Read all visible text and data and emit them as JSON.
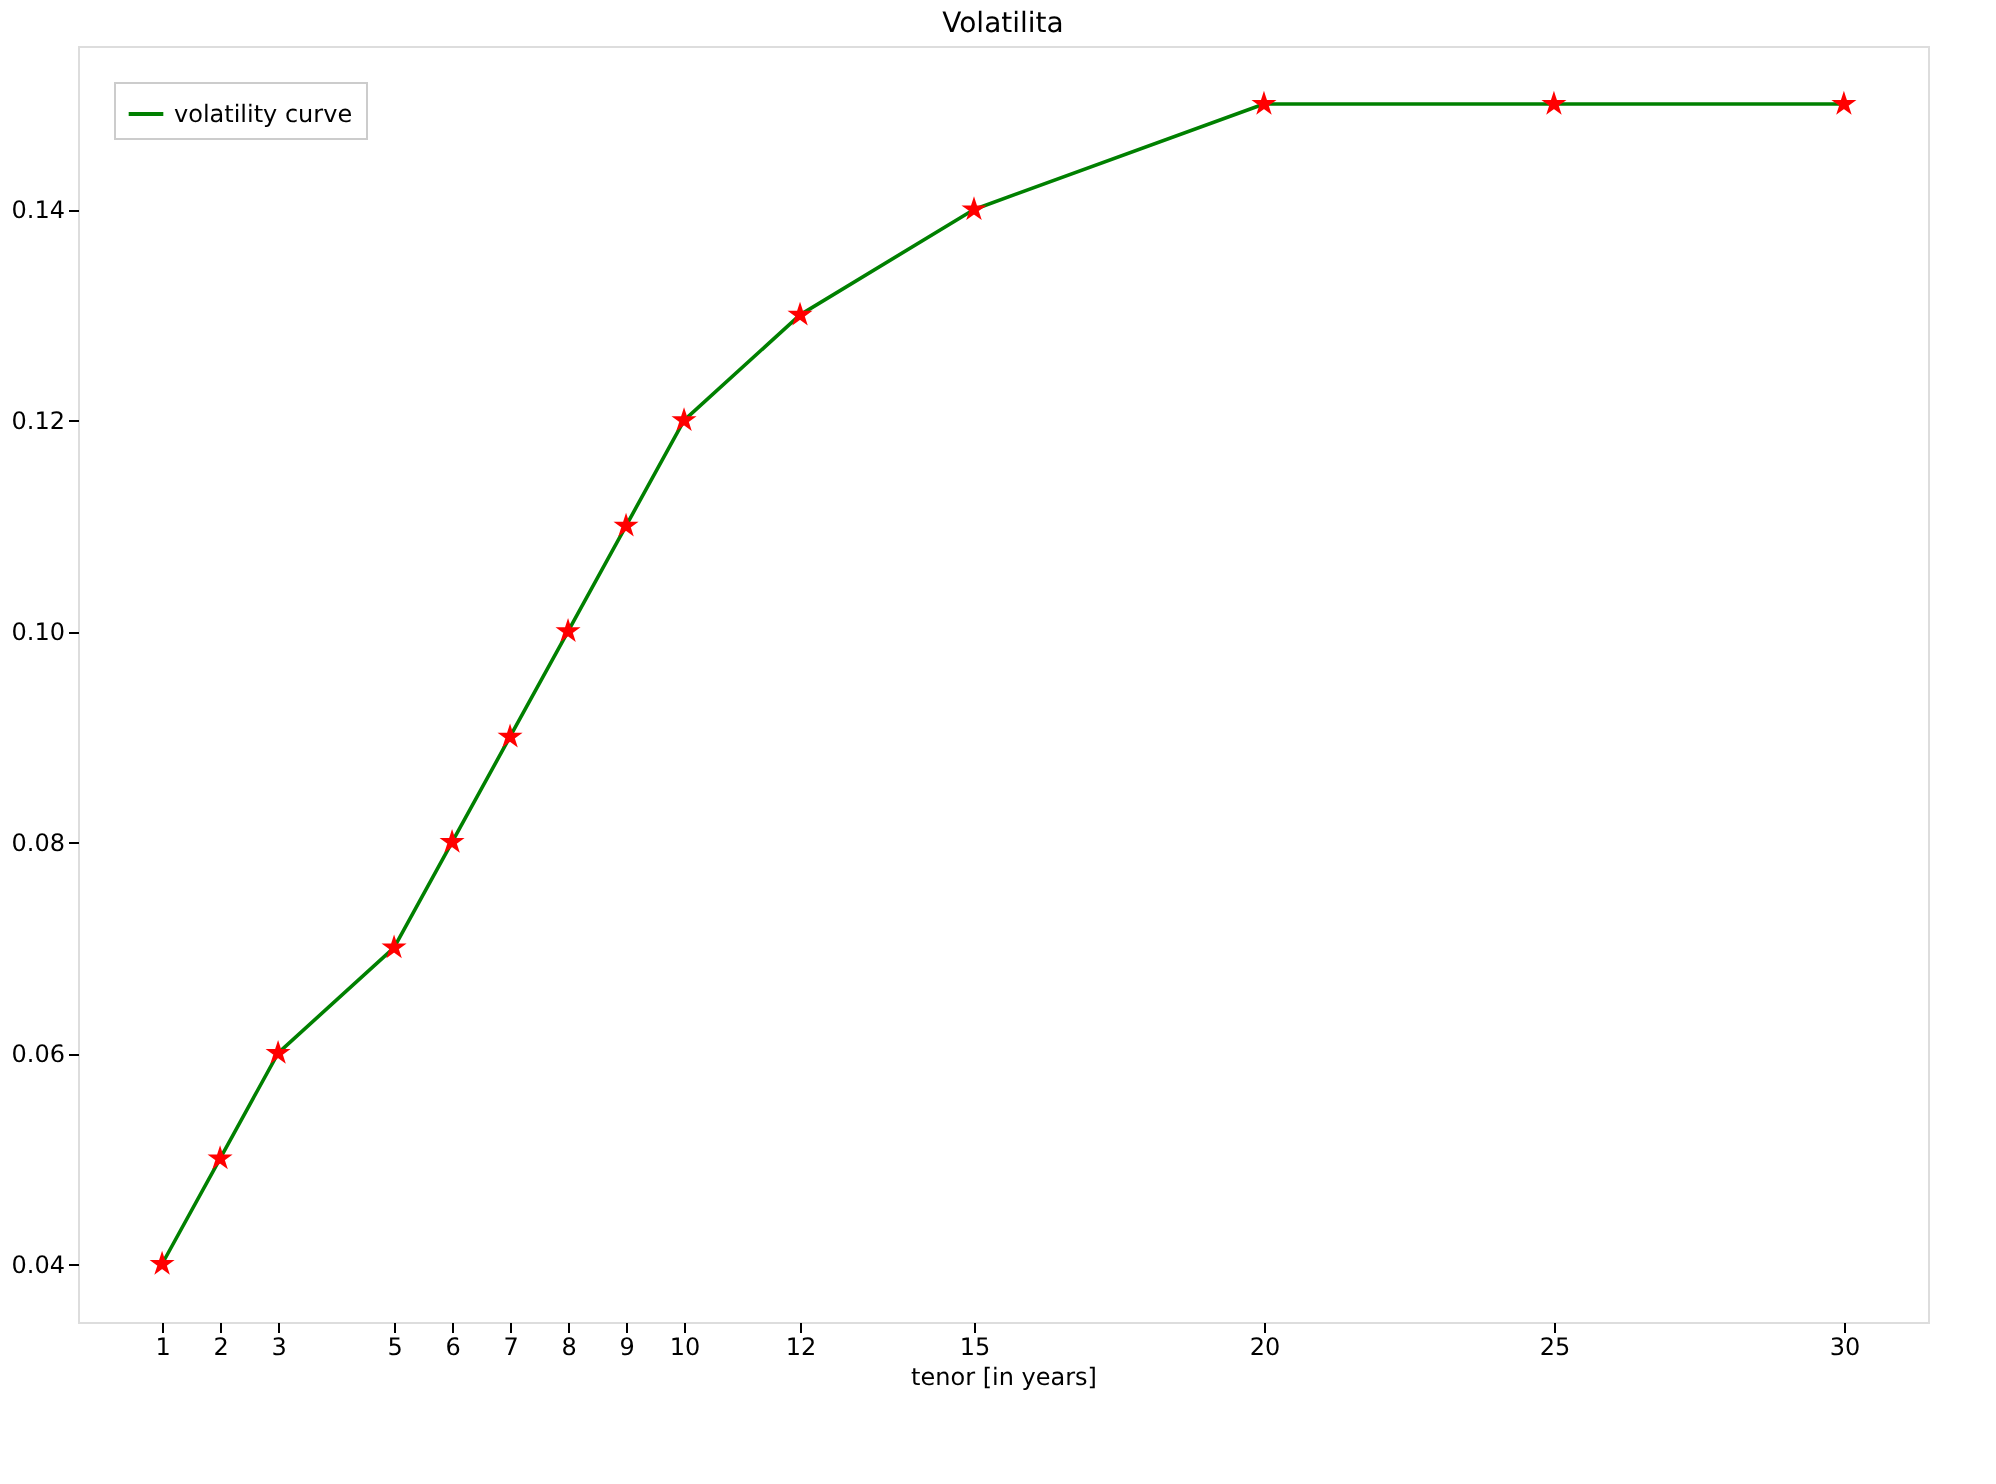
{
  "chart_data": {
    "type": "line",
    "title": "Volatilita",
    "xlabel": "tenor [in years]",
    "x": [
      1,
      2,
      3,
      5,
      6,
      7,
      8,
      9,
      10,
      12,
      15,
      20,
      25,
      30
    ],
    "series": [
      {
        "name": "volatility curve",
        "color": "#008000",
        "colors": [
          "#ff0000",
          "#ff0000",
          "#ff0000",
          "#ff0000",
          "#ff0000",
          "#ff0000",
          "#ff0000",
          "#ff0000",
          "#ff0000",
          "#ff0000",
          "#ff0000",
          "#ff0000",
          "#ff0000",
          "#ff0000"
        ],
        "values": [
          0.04,
          0.05,
          0.06,
          0.07,
          0.08,
          0.09,
          0.1,
          0.11,
          0.12,
          0.13,
          0.14,
          0.15,
          0.15,
          0.15
        ]
      }
    ],
    "xlim": [
      -0.45,
      31.45
    ],
    "ylim": [
      0.0345,
      0.1555
    ],
    "xticks": [
      1,
      2,
      3,
      5,
      6,
      7,
      8,
      9,
      10,
      12,
      15,
      20,
      25,
      30
    ],
    "yticks": [
      {
        "value": 0.04,
        "label": "0.04"
      },
      {
        "value": 0.06,
        "label": "0.06"
      },
      {
        "value": 0.08,
        "label": "0.08"
      },
      {
        "value": 0.1,
        "label": "0.10"
      },
      {
        "value": 0.12,
        "label": "0.12"
      },
      {
        "value": 0.14,
        "label": "0.14"
      }
    ],
    "marker": "star",
    "legend": "top left",
    "grid": false
  }
}
